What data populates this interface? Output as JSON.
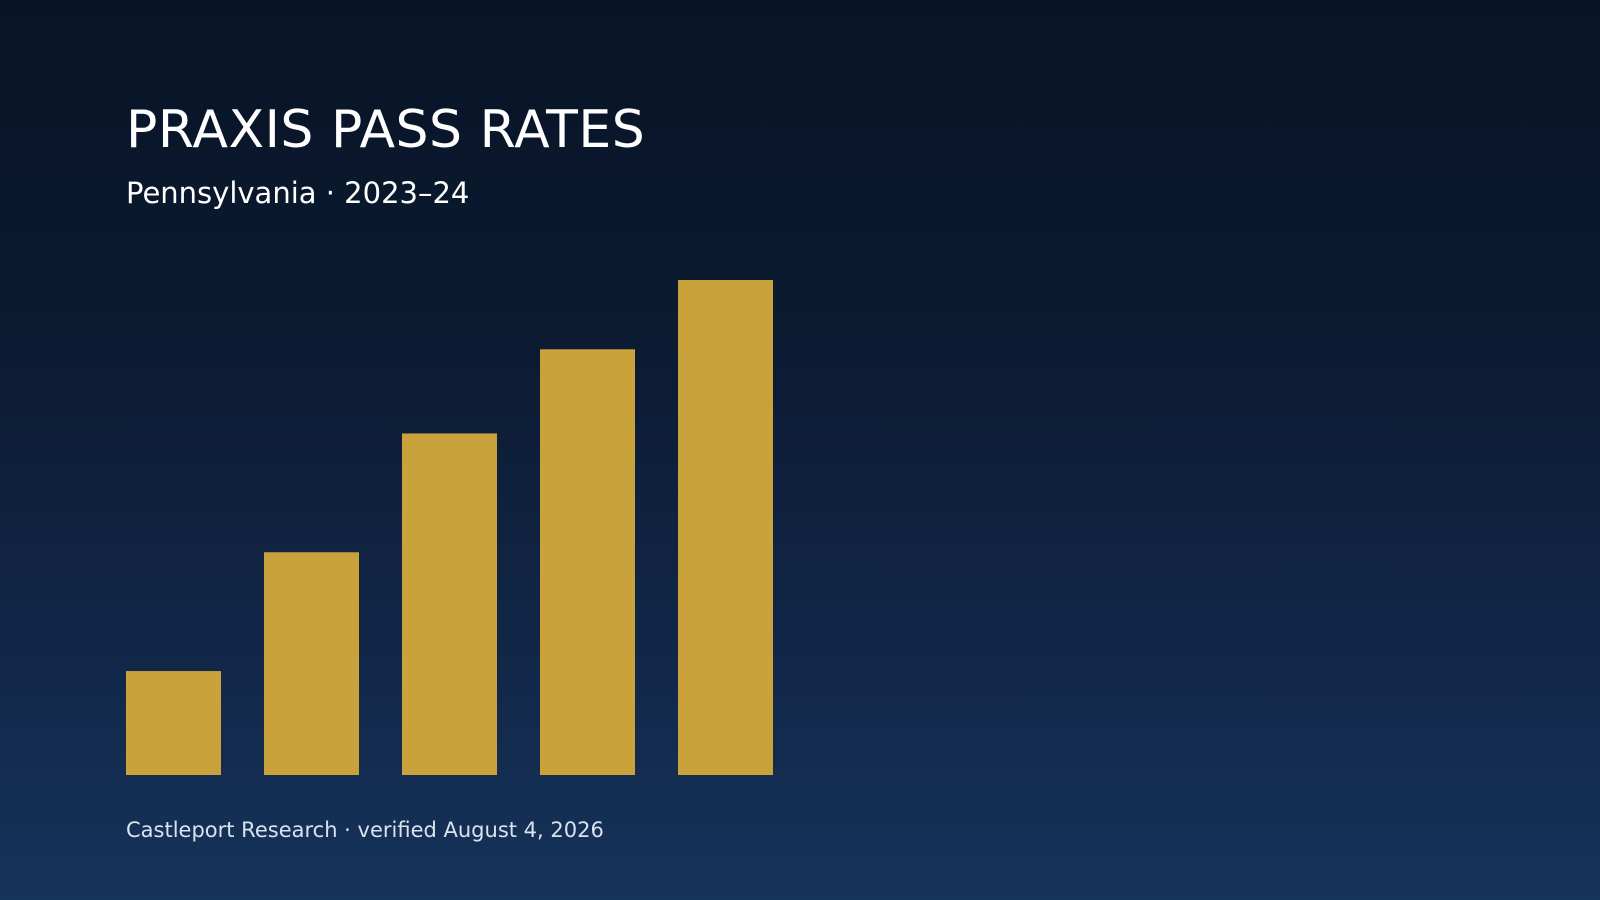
{
  "chart_data": {
    "type": "bar",
    "title": "PRAXIS PASS RATES",
    "subtitle": "Pennsylvania · 2023–24",
    "values": [
      21,
      45,
      69,
      86,
      100
    ],
    "ylim": [
      0,
      100
    ],
    "grid": false,
    "legend": "none",
    "bar_color": "#c9a23c"
  },
  "footer": {
    "source": "Castleport Research · verified August 4, 2026"
  },
  "colors": {
    "background_top": "#081426",
    "background_bottom": "#16335a",
    "text": "#ffffff"
  }
}
